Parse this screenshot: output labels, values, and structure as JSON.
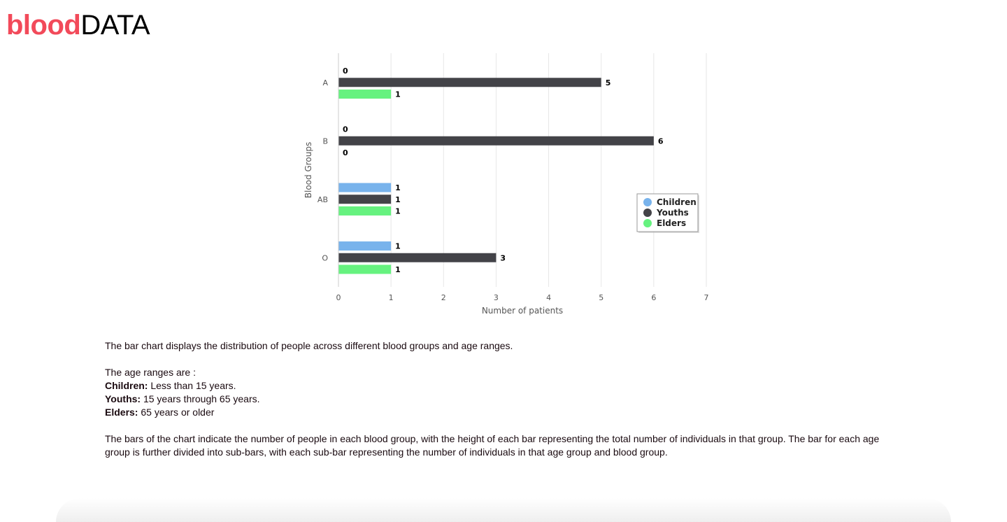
{
  "brand": {
    "part1": "blood",
    "part2": "DATA"
  },
  "chart_data": {
    "type": "bar",
    "orientation": "horizontal",
    "categories": [
      "A",
      "B",
      "AB",
      "O"
    ],
    "series": [
      {
        "name": "Children",
        "color": "#78b3ec",
        "values": [
          0,
          0,
          1,
          1
        ]
      },
      {
        "name": "Youths",
        "color": "#434348",
        "values": [
          5,
          6,
          1,
          3
        ]
      },
      {
        "name": "Elders",
        "color": "#66f27f",
        "values": [
          1,
          0,
          1,
          1
        ]
      }
    ],
    "xlabel": "Number of patients",
    "ylabel": "Blood Groups",
    "xlim": [
      0,
      7
    ],
    "xticks": [
      0,
      1,
      2,
      3,
      4,
      5,
      6,
      7
    ],
    "grid": true,
    "data_labels": true,
    "legend_position": "right"
  },
  "description": {
    "intro": "The bar chart displays the distribution of people across different blood groups and age ranges.",
    "ranges_heading": "The age ranges are :",
    "children_label": "Children:",
    "children_text": " Less than 15 years.",
    "youths_label": "Youths:",
    "youths_text": " 15 years through 65 years.",
    "elders_label": "Elders:",
    "elders_text": " 65 years or older",
    "explanation": "The bars of the chart indicate the number of people in each blood group, with the height of each bar representing the total number of individuals in that group. The bar for each age group is further divided into sub-bars, with each sub-bar representing the number of individuals in that age group and blood group."
  }
}
